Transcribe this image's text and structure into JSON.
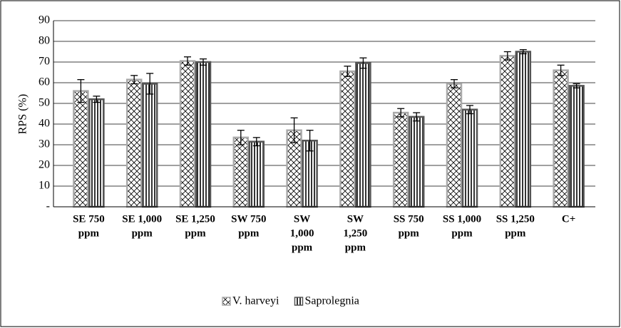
{
  "chart_data": {
    "type": "bar",
    "y_label": "RPS (%)",
    "categories": [
      [
        "SE 750",
        "ppm"
      ],
      [
        "SE 1,000",
        "ppm"
      ],
      [
        "SE 1,250",
        "ppm"
      ],
      [
        "SW 750",
        "ppm"
      ],
      [
        "SW",
        "1,000",
        "ppm"
      ],
      [
        "SW",
        "1,250",
        "ppm"
      ],
      [
        "SS 750",
        "ppm"
      ],
      [
        "SS 1,000",
        "ppm"
      ],
      [
        "SS 1,250",
        "ppm"
      ],
      [
        "C+"
      ]
    ],
    "series": [
      {
        "name": "V. harveyi",
        "color": "#aaaaaa",
        "pattern": "crosshatch",
        "values": [
          56,
          61.5,
          70.5,
          33.5,
          37,
          65.5,
          45.5,
          59.5,
          73,
          66
        ],
        "errors": [
          5.5,
          2,
          2,
          3.5,
          6,
          2.5,
          2,
          2,
          2,
          2.5
        ]
      },
      {
        "name": "Saprolegnia",
        "color": "#555555",
        "pattern": "vertical",
        "values": [
          52,
          59.5,
          70,
          31.5,
          32,
          69.5,
          43.5,
          47,
          75,
          58.5
        ],
        "errors": [
          1.5,
          5,
          1.5,
          2,
          5,
          2.5,
          2,
          2,
          1,
          1
        ]
      }
    ],
    "ylim": [
      0,
      90
    ],
    "yticks": [
      {
        "value": 0,
        "label": "-"
      },
      10,
      20,
      30,
      40,
      50,
      60,
      70,
      80,
      90
    ],
    "grid": true
  }
}
